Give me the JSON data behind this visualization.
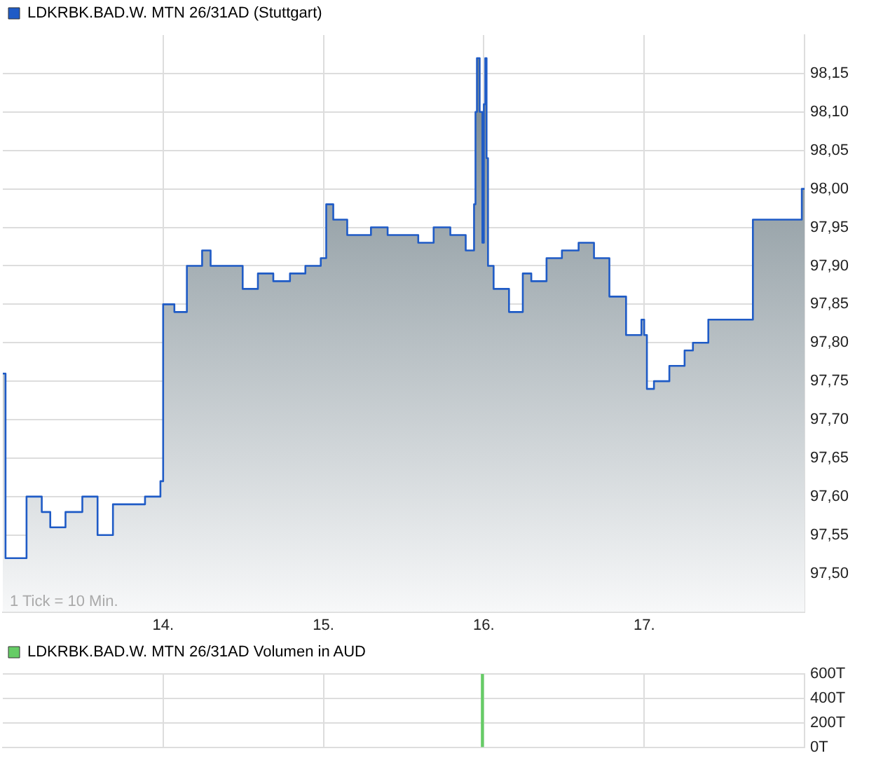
{
  "chart_data": [
    {
      "type": "area",
      "x": [
        13.0,
        13.017,
        13.017,
        13.148,
        13.148,
        13.243,
        13.243,
        13.296,
        13.296,
        13.391,
        13.391,
        13.496,
        13.496,
        13.591,
        13.591,
        13.687,
        13.687,
        13.887,
        13.887,
        13.983,
        13.983,
        14.0,
        14.0,
        14.07,
        14.07,
        14.148,
        14.148,
        14.243,
        14.243,
        14.296,
        14.296,
        14.496,
        14.496,
        14.591,
        14.591,
        14.687,
        14.687,
        14.791,
        14.791,
        14.887,
        14.887,
        14.983,
        14.983,
        15.017,
        15.017,
        15.061,
        15.061,
        15.148,
        15.148,
        15.296,
        15.296,
        15.4,
        15.4,
        15.591,
        15.591,
        15.687,
        15.687,
        15.791,
        15.791,
        15.887,
        15.887,
        15.939,
        15.939,
        15.948,
        15.948,
        15.957,
        15.957,
        15.974,
        15.974,
        15.991,
        15.991,
        16.0,
        16.0,
        16.009,
        16.009,
        16.017,
        16.017,
        16.026,
        16.026,
        16.061,
        16.061,
        16.157,
        16.157,
        16.243,
        16.243,
        16.296,
        16.296,
        16.391,
        16.391,
        16.487,
        16.487,
        16.591,
        16.591,
        16.687,
        16.687,
        16.783,
        16.783,
        16.887,
        16.887,
        16.983,
        16.983,
        17.0,
        17.0,
        17.017,
        17.017,
        17.061,
        17.061,
        17.157,
        17.157,
        17.252,
        17.252,
        17.304,
        17.304,
        17.4,
        17.4,
        17.678,
        17.678,
        17.983,
        17.983,
        18.0
      ],
      "series": [
        {
          "name": "LDKRBK.BAD.W. MTN 26/31AD (Stuttgart)",
          "color": "#1f5bc6",
          "values": [
            97.76,
            97.76,
            97.52,
            97.52,
            97.6,
            97.6,
            97.58,
            97.58,
            97.56,
            97.56,
            97.58,
            97.58,
            97.6,
            97.6,
            97.55,
            97.55,
            97.59,
            97.59,
            97.6,
            97.6,
            97.62,
            97.62,
            97.85,
            97.85,
            97.84,
            97.84,
            97.9,
            97.9,
            97.92,
            97.92,
            97.9,
            97.9,
            97.87,
            97.87,
            97.89,
            97.89,
            97.88,
            97.88,
            97.89,
            97.89,
            97.9,
            97.9,
            97.91,
            97.91,
            97.98,
            97.98,
            97.96,
            97.96,
            97.94,
            97.94,
            97.95,
            97.95,
            97.94,
            97.94,
            97.93,
            97.93,
            97.95,
            97.95,
            97.94,
            97.94,
            97.92,
            97.92,
            97.98,
            97.98,
            98.1,
            98.1,
            98.17,
            98.17,
            98.1,
            98.1,
            97.93,
            97.93,
            98.11,
            98.11,
            98.17,
            98.17,
            98.04,
            98.04,
            97.9,
            97.9,
            97.87,
            97.87,
            97.84,
            97.84,
            97.89,
            97.89,
            97.88,
            97.88,
            97.91,
            97.91,
            97.92,
            97.92,
            97.93,
            97.93,
            97.91,
            97.91,
            97.86,
            97.86,
            97.81,
            97.81,
            97.83,
            97.83,
            97.81,
            97.81,
            97.74,
            97.74,
            97.75,
            97.75,
            97.77,
            97.77,
            97.79,
            97.79,
            97.8,
            97.8,
            97.83,
            97.83,
            97.96,
            97.96,
            98.0,
            98.0
          ]
        }
      ],
      "xlim": [
        13,
        18
      ],
      "xticks": [
        {
          "value": 14,
          "label": "14."
        },
        {
          "value": 15,
          "label": "15."
        },
        {
          "value": 16,
          "label": "16."
        },
        {
          "value": 17,
          "label": "17."
        }
      ],
      "ylim": [
        97.45,
        98.2
      ],
      "yticks": [
        {
          "value": 97.5,
          "label": "97,50"
        },
        {
          "value": 97.55,
          "label": "97,55"
        },
        {
          "value": 97.6,
          "label": "97,60"
        },
        {
          "value": 97.65,
          "label": "97,65"
        },
        {
          "value": 97.7,
          "label": "97,70"
        },
        {
          "value": 97.75,
          "label": "97,75"
        },
        {
          "value": 97.8,
          "label": "97,80"
        },
        {
          "value": 97.85,
          "label": "97,85"
        },
        {
          "value": 97.9,
          "label": "97,90"
        },
        {
          "value": 97.95,
          "label": "97,95"
        },
        {
          "value": 98.0,
          "label": "98,00"
        },
        {
          "value": 98.05,
          "label": "98,05"
        },
        {
          "value": 98.1,
          "label": "98,10"
        },
        {
          "value": 98.15,
          "label": "98,15"
        }
      ],
      "grid": true,
      "legend": "top left",
      "annotations": [
        "1 Tick = 10 Min."
      ]
    },
    {
      "type": "bar",
      "x": [
        15.991
      ],
      "series": [
        {
          "name": "LDKRBK.BAD.W. MTN 26/31AD Volumen in AUD",
          "color": "#66cc66",
          "values": [
            600
          ]
        }
      ],
      "xlim": [
        13,
        18
      ],
      "xticks": [
        {
          "value": 14,
          "label": null
        },
        {
          "value": 15,
          "label": null
        },
        {
          "value": 16,
          "label": null
        },
        {
          "value": 17,
          "label": null
        }
      ],
      "ylim": [
        0,
        600
      ],
      "yticks": [
        {
          "value": 0,
          "label": "0T"
        },
        {
          "value": 200,
          "label": "200T"
        },
        {
          "value": 400,
          "label": "400T"
        },
        {
          "value": 600,
          "label": "600T"
        }
      ],
      "grid": true,
      "legend": "top left",
      "tick_labels": "y"
    }
  ]
}
